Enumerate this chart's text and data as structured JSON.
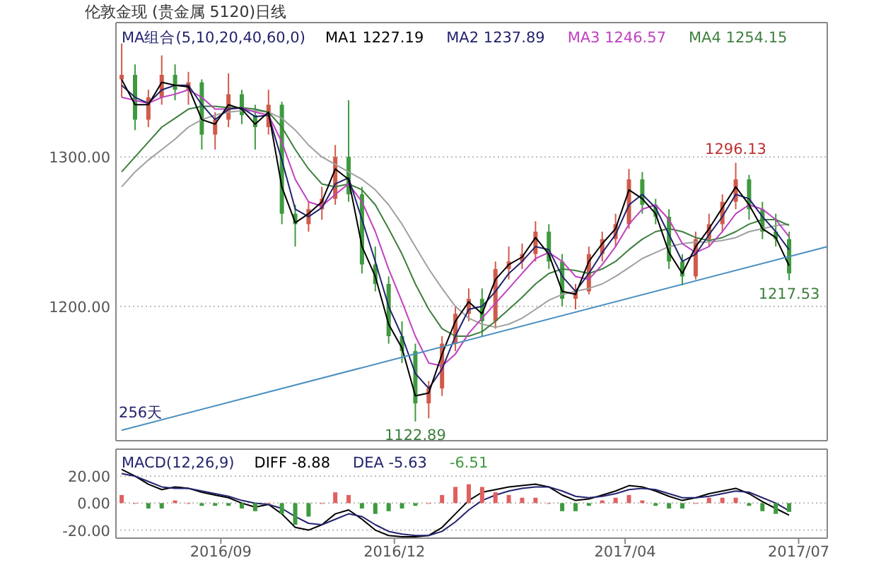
{
  "chart_data": [
    {
      "type": "candlestick",
      "title": "伦敦金现 (贵金属 5120)日线",
      "legend_title": "MA组合(5,10,20,40,60,0)",
      "legend": "top",
      "grid": "y",
      "tick_labels": "y",
      "xlim": [
        "2016-07-08",
        "2017-07-16"
      ],
      "ylim": [
        1110,
        1390
      ],
      "yticks": [
        {
          "value": 1200,
          "label": "1200.00"
        },
        {
          "value": 1300,
          "label": "1300.00"
        }
      ],
      "x": [
        "2016-07-11",
        "2016-07-18",
        "2016-07-25",
        "2016-08-01",
        "2016-08-08",
        "2016-08-15",
        "2016-08-22",
        "2016-08-29",
        "2016-09-05",
        "2016-09-12",
        "2016-09-19",
        "2016-09-26",
        "2016-10-03",
        "2016-10-10",
        "2016-10-17",
        "2016-10-24",
        "2016-10-31",
        "2016-11-07",
        "2016-11-14",
        "2016-11-21",
        "2016-11-28",
        "2016-12-05",
        "2016-12-12",
        "2016-12-19",
        "2016-12-26",
        "2017-01-02",
        "2017-01-09",
        "2017-01-16",
        "2017-01-23",
        "2017-01-30",
        "2017-02-06",
        "2017-02-13",
        "2017-02-20",
        "2017-02-27",
        "2017-03-06",
        "2017-03-13",
        "2017-03-20",
        "2017-03-27",
        "2017-04-03",
        "2017-04-10",
        "2017-04-17",
        "2017-04-24",
        "2017-05-01",
        "2017-05-08",
        "2017-05-15",
        "2017-05-22",
        "2017-05-29",
        "2017-06-05",
        "2017-06-12",
        "2017-06-19",
        "2017-06-26"
      ],
      "ohlc": [
        [
          1352,
          1376,
          1340,
          1355
        ],
        [
          1355,
          1362,
          1318,
          1325
        ],
        [
          1325,
          1345,
          1320,
          1340
        ],
        [
          1340,
          1368,
          1335,
          1355
        ],
        [
          1355,
          1362,
          1338,
          1345
        ],
        [
          1345,
          1357,
          1335,
          1350
        ],
        [
          1350,
          1352,
          1305,
          1315
        ],
        [
          1315,
          1330,
          1305,
          1325
        ],
        [
          1325,
          1356,
          1320,
          1342
        ],
        [
          1342,
          1345,
          1322,
          1328
        ],
        [
          1328,
          1335,
          1305,
          1320
        ],
        [
          1320,
          1345,
          1315,
          1335
        ],
        [
          1335,
          1337,
          1255,
          1262
        ],
        [
          1262,
          1268,
          1240,
          1255
        ],
        [
          1255,
          1270,
          1250,
          1265
        ],
        [
          1265,
          1280,
          1258,
          1272
        ],
        [
          1272,
          1308,
          1268,
          1300
        ],
        [
          1300,
          1338,
          1270,
          1275
        ],
        [
          1275,
          1280,
          1222,
          1228
        ],
        [
          1228,
          1240,
          1210,
          1215
        ],
        [
          1215,
          1220,
          1175,
          1180
        ],
        [
          1180,
          1190,
          1162,
          1170
        ],
        [
          1170,
          1175,
          1122.89,
          1135
        ],
        [
          1135,
          1150,
          1125,
          1145
        ],
        [
          1145,
          1180,
          1140,
          1175
        ],
        [
          1175,
          1200,
          1170,
          1195
        ],
        [
          1195,
          1212,
          1190,
          1205
        ],
        [
          1205,
          1212,
          1180,
          1190
        ],
        [
          1190,
          1230,
          1185,
          1225
        ],
        [
          1225,
          1240,
          1218,
          1230
        ],
        [
          1230,
          1242,
          1225,
          1235
        ],
        [
          1235,
          1257,
          1230,
          1250
        ],
        [
          1250,
          1255,
          1225,
          1230
        ],
        [
          1230,
          1235,
          1200,
          1205
        ],
        [
          1205,
          1215,
          1198,
          1210
        ],
        [
          1210,
          1240,
          1208,
          1235
        ],
        [
          1235,
          1250,
          1230,
          1245
        ],
        [
          1245,
          1262,
          1240,
          1255
        ],
        [
          1255,
          1292,
          1252,
          1285
        ],
        [
          1285,
          1290,
          1262,
          1268
        ],
        [
          1268,
          1272,
          1255,
          1260
        ],
        [
          1260,
          1265,
          1225,
          1230
        ],
        [
          1230,
          1235,
          1214,
          1220
        ],
        [
          1220,
          1250,
          1218,
          1245
        ],
        [
          1245,
          1262,
          1240,
          1255
        ],
        [
          1255,
          1275,
          1250,
          1270
        ],
        [
          1270,
          1296.13,
          1265,
          1285
        ],
        [
          1285,
          1288,
          1258,
          1265
        ],
        [
          1265,
          1270,
          1245,
          1250
        ],
        [
          1250,
          1262,
          1240,
          1245
        ],
        [
          1245,
          1250,
          1217.53,
          1222
        ]
      ],
      "colors": [
        "#d05a4a",
        "#3f9a3f",
        "#d05a4a",
        "#d05a4a",
        "#3f9a3f",
        "#d05a4a",
        "#3f9a3f",
        "#d05a4a",
        "#d05a4a",
        "#3f9a3f",
        "#3f9a3f",
        "#d05a4a",
        "#3f9a3f",
        "#3f9a3f",
        "#d05a4a",
        "#d05a4a",
        "#d05a4a",
        "#3f9a3f",
        "#3f9a3f",
        "#3f9a3f",
        "#3f9a3f",
        "#3f9a3f",
        "#3f9a3f",
        "#d05a4a",
        "#d05a4a",
        "#d05a4a",
        "#d05a4a",
        "#3f9a3f",
        "#d05a4a",
        "#d05a4a",
        "#d05a4a",
        "#d05a4a",
        "#3f9a3f",
        "#3f9a3f",
        "#d05a4a",
        "#d05a4a",
        "#d05a4a",
        "#d05a4a",
        "#d05a4a",
        "#3f9a3f",
        "#3f9a3f",
        "#3f9a3f",
        "#3f9a3f",
        "#d05a4a",
        "#d05a4a",
        "#d05a4a",
        "#d05a4a",
        "#3f9a3f",
        "#3f9a3f",
        "#3f9a3f",
        "#3f9a3f"
      ],
      "series": [
        {
          "type": "line",
          "color": "#a0a0a0",
          "values": [
            1280,
            1290,
            1298,
            1305,
            1312,
            1320,
            1325,
            1328,
            1330,
            1331,
            1331,
            1330,
            1326,
            1318,
            1308,
            1300,
            1295,
            1290,
            1285,
            1278,
            1268,
            1255,
            1240,
            1225,
            1212,
            1200,
            1192,
            1188,
            1186,
            1188,
            1192,
            1198,
            1204,
            1208,
            1210,
            1212,
            1215,
            1220,
            1226,
            1232,
            1236,
            1240,
            1242,
            1243,
            1243,
            1244,
            1246,
            1250,
            1252,
            1254,
            1255
          ]
        },
        {
          "type": "line",
          "name": "MA4 1254.15",
          "color": "#3d7f3d",
          "values": [
            1290,
            1300,
            1310,
            1320,
            1326,
            1332,
            1334,
            1334,
            1333,
            1333,
            1332,
            1330,
            1320,
            1305,
            1292,
            1282,
            1280,
            1282,
            1278,
            1268,
            1252,
            1235,
            1215,
            1198,
            1185,
            1180,
            1180,
            1183,
            1190,
            1198,
            1206,
            1215,
            1222,
            1225,
            1224,
            1222,
            1225,
            1230,
            1238,
            1245,
            1250,
            1252,
            1250,
            1246,
            1244,
            1246,
            1250,
            1255,
            1258,
            1258,
            1254.15
          ]
        },
        {
          "type": "line",
          "name": "MA3 1246.57",
          "color": "#c040c0",
          "values": [
            1340,
            1338,
            1336,
            1340,
            1342,
            1345,
            1340,
            1332,
            1332,
            1333,
            1330,
            1328,
            1310,
            1285,
            1270,
            1267,
            1275,
            1282,
            1270,
            1250,
            1225,
            1203,
            1180,
            1162,
            1160,
            1168,
            1182,
            1192,
            1202,
            1212,
            1222,
            1232,
            1236,
            1230,
            1220,
            1218,
            1228,
            1240,
            1255,
            1265,
            1268,
            1258,
            1242,
            1236,
            1240,
            1250,
            1262,
            1268,
            1265,
            1258,
            1246.57
          ]
        },
        {
          "type": "line",
          "name": "MA2 1237.89",
          "color": "#23236e",
          "values": [
            1348,
            1340,
            1336,
            1345,
            1348,
            1348,
            1335,
            1325,
            1332,
            1333,
            1327,
            1328,
            1298,
            1265,
            1260,
            1266,
            1282,
            1286,
            1258,
            1230,
            1200,
            1180,
            1155,
            1145,
            1158,
            1180,
            1198,
            1200,
            1210,
            1222,
            1230,
            1240,
            1238,
            1220,
            1210,
            1222,
            1236,
            1248,
            1268,
            1275,
            1266,
            1248,
            1230,
            1235,
            1248,
            1260,
            1275,
            1272,
            1260,
            1250,
            1237.89
          ]
        },
        {
          "type": "line",
          "name": "MA1 1227.19",
          "color": "#000000",
          "values": [
            1352,
            1335,
            1335,
            1350,
            1348,
            1347,
            1325,
            1322,
            1335,
            1332,
            1322,
            1330,
            1280,
            1256,
            1262,
            1270,
            1292,
            1285,
            1240,
            1220,
            1188,
            1172,
            1140,
            1142,
            1168,
            1190,
            1203,
            1195,
            1218,
            1228,
            1233,
            1246,
            1235,
            1210,
            1208,
            1230,
            1242,
            1252,
            1278,
            1272,
            1262,
            1236,
            1222,
            1240,
            1252,
            1266,
            1280,
            1268,
            1252,
            1246,
            1227.19
          ]
        },
        {
          "type": "line",
          "color": "#4a8fc0",
          "x": [
            "2016-07-11",
            "2017-07-16"
          ],
          "values": [
            1117,
            1240
          ]
        }
      ],
      "annotations": [
        {
          "text": "1296.13",
          "x": "2017-05-29",
          "y": 1296.13
        },
        {
          "text": "1122.89",
          "x": "2016-12-12",
          "y": 1122.89
        },
        {
          "text": "1217.53",
          "x": "2017-06-26",
          "y": 1217.53
        },
        {
          "text": "256天",
          "x": "2016-07-11",
          "y": 1117
        }
      ]
    },
    {
      "type": "bar",
      "legend_title": "MACD(12,26,9)",
      "legend": "top",
      "grid": "y",
      "xlim": [
        "2016-07-08",
        "2017-07-16"
      ],
      "ylim": [
        -26,
        40
      ],
      "yticks": [
        {
          "value": -20,
          "label": "-20.00"
        },
        {
          "value": 0,
          "label": "0.00"
        },
        {
          "value": 20,
          "label": "20.00"
        }
      ],
      "xticks": [
        {
          "value": "2016-09-01",
          "label": "2016/09"
        },
        {
          "value": "2016-12-01",
          "label": "2016/12"
        },
        {
          "value": "2017-04-01",
          "label": "2017/04"
        },
        {
          "value": "2017-07-01",
          "label": "2017/07"
        }
      ],
      "x": [
        "2016-07-11",
        "2016-07-18",
        "2016-07-25",
        "2016-08-01",
        "2016-08-08",
        "2016-08-15",
        "2016-08-22",
        "2016-08-29",
        "2016-09-05",
        "2016-09-12",
        "2016-09-19",
        "2016-09-26",
        "2016-10-03",
        "2016-10-10",
        "2016-10-17",
        "2016-10-24",
        "2016-10-31",
        "2016-11-07",
        "2016-11-14",
        "2016-11-21",
        "2016-11-28",
        "2016-12-05",
        "2016-12-12",
        "2016-12-19",
        "2016-12-26",
        "2017-01-02",
        "2017-01-09",
        "2017-01-16",
        "2017-01-23",
        "2017-01-30",
        "2017-02-06",
        "2017-02-13",
        "2017-02-20",
        "2017-02-27",
        "2017-03-06",
        "2017-03-13",
        "2017-03-20",
        "2017-03-27",
        "2017-04-03",
        "2017-04-10",
        "2017-04-17",
        "2017-04-24",
        "2017-05-01",
        "2017-05-08",
        "2017-05-15",
        "2017-05-22",
        "2017-05-29",
        "2017-06-05",
        "2017-06-12",
        "2017-06-19",
        "2017-06-26"
      ],
      "series": [
        {
          "type": "line",
          "name": "DIFF -8.88",
          "color": "#000000",
          "values": [
            25,
            20,
            14,
            10,
            12,
            11,
            8,
            6,
            4,
            0,
            -3,
            -1,
            -8,
            -18,
            -20,
            -16,
            -8,
            -5,
            -12,
            -20,
            -24,
            -25,
            -25,
            -24,
            -18,
            -8,
            2,
            8,
            10,
            12,
            13,
            14,
            12,
            6,
            2,
            3,
            6,
            9,
            13,
            12,
            9,
            5,
            2,
            4,
            7,
            9,
            11,
            7,
            1,
            -4,
            -8.88
          ]
        },
        {
          "type": "line",
          "name": "DEA -5.63",
          "color": "#23236e",
          "values": [
            22,
            20,
            16,
            12,
            11,
            11,
            9,
            7,
            5,
            2,
            0,
            -1,
            -4,
            -10,
            -15,
            -16,
            -12,
            -8,
            -10,
            -16,
            -21,
            -23,
            -24,
            -24,
            -21,
            -14,
            -5,
            2,
            6,
            9,
            11,
            12,
            12,
            9,
            5,
            4,
            5,
            7,
            10,
            11,
            10,
            7,
            4,
            4,
            5,
            7,
            9,
            8,
            4,
            0,
            -5.63
          ]
        },
        {
          "type": "bar",
          "name": "-6.51",
          "values": [
            6,
            0,
            -4,
            -4,
            2,
            0,
            -2,
            -2,
            -2,
            -4,
            -6,
            0,
            -8,
            -16,
            -10,
            0,
            8,
            6,
            -4,
            -8,
            -6,
            -4,
            -2,
            0,
            6,
            12,
            14,
            12,
            8,
            6,
            4,
            4,
            0,
            -6,
            -6,
            -2,
            2,
            4,
            6,
            2,
            -2,
            -4,
            -4,
            0,
            4,
            4,
            4,
            -2,
            -6,
            -8,
            -6.51
          ],
          "colors": [
            "#e06060",
            "#e06060",
            "#3f9a3f",
            "#3f9a3f",
            "#e06060",
            "#e06060",
            "#3f9a3f",
            "#3f9a3f",
            "#3f9a3f",
            "#3f9a3f",
            "#3f9a3f",
            "#e06060",
            "#3f9a3f",
            "#3f9a3f",
            "#3f9a3f",
            "#e06060",
            "#e06060",
            "#e06060",
            "#3f9a3f",
            "#3f9a3f",
            "#3f9a3f",
            "#3f9a3f",
            "#3f9a3f",
            "#e06060",
            "#e06060",
            "#e06060",
            "#e06060",
            "#e06060",
            "#e06060",
            "#e06060",
            "#e06060",
            "#e06060",
            "#e06060",
            "#3f9a3f",
            "#3f9a3f",
            "#3f9a3f",
            "#e06060",
            "#e06060",
            "#e06060",
            "#e06060",
            "#3f9a3f",
            "#3f9a3f",
            "#3f9a3f",
            "#e06060",
            "#e06060",
            "#e06060",
            "#e06060",
            "#3f9a3f",
            "#3f9a3f",
            "#3f9a3f",
            "#3f9a3f"
          ]
        }
      ]
    }
  ]
}
